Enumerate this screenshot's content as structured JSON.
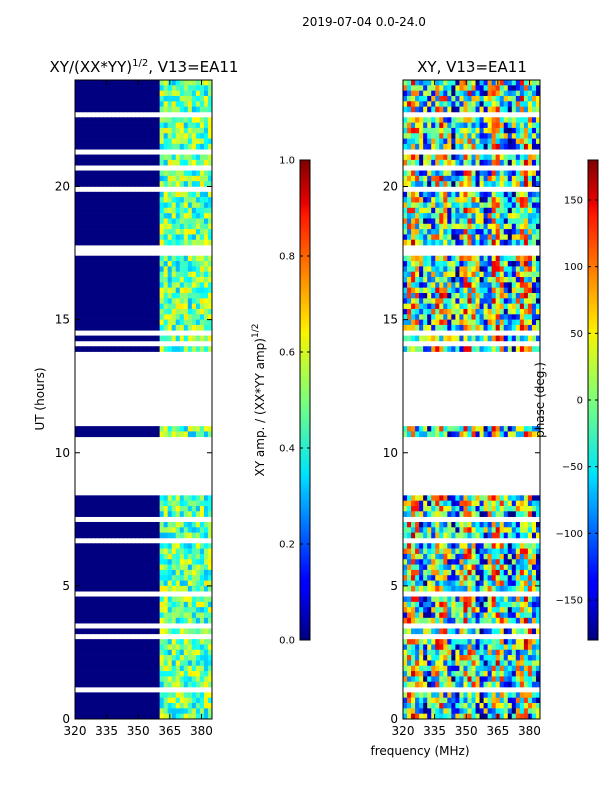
{
  "figure_title": "2019-07-04 0.0-24.0",
  "chart_data": [
    {
      "type": "heatmap",
      "title_main": "XY/(XX*YY)",
      "title_sup": "1/2",
      "title_suffix": ", V13=EA11",
      "xlabel": "",
      "ylabel": "UT (hours)",
      "xlim": [
        320,
        385
      ],
      "ylim": [
        0,
        24
      ],
      "xticks": [
        "320",
        "335",
        "350",
        "365",
        "380"
      ],
      "yticks": [
        "0",
        "5",
        "10",
        "15",
        "20"
      ],
      "xtick_values": [
        320,
        335,
        350,
        365,
        380
      ],
      "ytick_values": [
        0,
        5,
        10,
        15,
        20
      ],
      "data_gaps_hours": [
        [
          8.5,
          10.3
        ],
        [
          11.1,
          13.8
        ]
      ],
      "colorbar": {
        "label_main": "XY amp. / (XX*YY amp)",
        "label_sup": "1/2",
        "range": [
          0.0,
          1.0
        ],
        "ticks": [
          "0.0",
          "0.2",
          "0.4",
          "0.6",
          "0.8",
          "1.0"
        ],
        "tick_values": [
          0.0,
          0.2,
          0.4,
          0.6,
          0.8,
          1.0
        ],
        "colormap": "jet"
      }
    },
    {
      "type": "heatmap",
      "title": "XY, V13=EA11",
      "xlabel": "frequency (MHz)",
      "ylabel": "",
      "xlim": [
        320,
        385
      ],
      "ylim": [
        0,
        24
      ],
      "xticks": [
        "320",
        "335",
        "350",
        "365",
        "380"
      ],
      "yticks": [
        "0",
        "5",
        "10",
        "15",
        "20"
      ],
      "xtick_values": [
        320,
        335,
        350,
        365,
        380
      ],
      "ytick_values": [
        0,
        5,
        10,
        15,
        20
      ],
      "data_gaps_hours": [
        [
          8.5,
          10.3
        ],
        [
          11.1,
          13.8
        ]
      ],
      "colorbar": {
        "label": "phase (deg.)",
        "range": [
          -180,
          180
        ],
        "ticks": [
          "−150",
          "−100",
          "−50",
          "0",
          "50",
          "100",
          "150"
        ],
        "tick_values": [
          -150,
          -100,
          -50,
          0,
          50,
          100,
          150
        ],
        "colormap": "jet"
      }
    }
  ]
}
